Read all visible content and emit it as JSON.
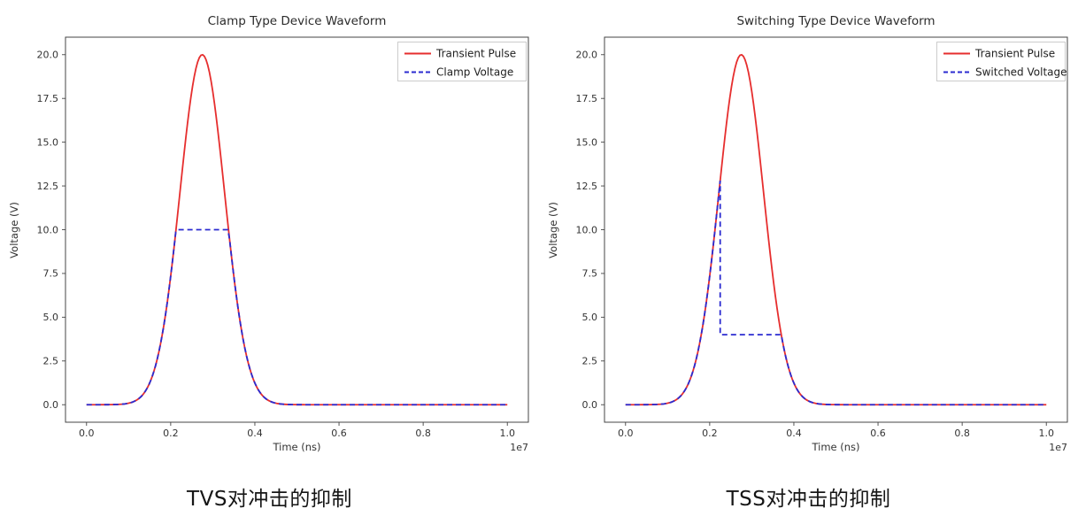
{
  "page": {
    "background": "#ffffff"
  },
  "colors": {
    "pulse_red": "#e62e2e",
    "device_blue": "#2b2bd0",
    "axis_gray": "#444444",
    "caption_text": "#161616"
  },
  "captions": [
    "TVS对冲击的抑制",
    "TSS对冲击的抑制"
  ],
  "chart_data": [
    {
      "type": "line",
      "title": "Clamp Type Device Waveform",
      "xlabel": "Time (ns)",
      "ylabel": "Voltage (V)",
      "x_offset_label": "1e7",
      "xlim": [
        -0.05,
        1.05
      ],
      "ylim": [
        -1,
        21
      ],
      "x_ticks": {
        "values": [
          0,
          0.2,
          0.4,
          0.6,
          0.8,
          1.0
        ],
        "labels": [
          "0.0",
          "0.2",
          "0.4",
          "0.6",
          "0.8",
          "1.0"
        ]
      },
      "y_ticks": {
        "values": [
          0,
          2.5,
          5,
          7.5,
          10,
          12.5,
          15,
          17.5,
          20
        ],
        "labels": [
          "0.0",
          "2.5",
          "5.0",
          "7.5",
          "10.0",
          "12.5",
          "15.0",
          "17.5",
          "20.0"
        ]
      },
      "grid": false,
      "legend": {
        "position": "upper-right",
        "entries": [
          {
            "label": "Transient Pulse",
            "color": "#e62e2e",
            "linestyle": "solid"
          },
          {
            "label": "Clamp Voltage",
            "color": "#2b2bd0",
            "linestyle": "dashed"
          }
        ]
      },
      "pulse": {
        "shape": "gaussian",
        "amplitude_v": 20,
        "center_x": 0.275,
        "sigma_x": 0.053,
        "x_units": "1e7 ns"
      },
      "device": {
        "type": "clamp",
        "clamp_voltage_v": 10
      },
      "samples": {
        "x_1e7_ns": [
          0,
          0.05,
          0.1,
          0.15,
          0.175,
          0.2,
          0.225,
          0.25,
          0.275,
          0.3,
          0.325,
          0.35,
          0.375,
          0.4,
          0.425,
          0.45,
          0.5,
          0.6,
          0.7,
          0.8,
          0.9,
          1.0
        ],
        "transient_pulse_v": [
          0,
          0,
          0.09,
          1.24,
          3.37,
          7.35,
          12.8,
          17.9,
          20,
          17.9,
          12.8,
          7.35,
          3.37,
          1.24,
          0.36,
          0.09,
          0,
          0,
          0,
          0,
          0,
          0
        ],
        "clamp_voltage_v": [
          0,
          0,
          0.09,
          1.24,
          3.37,
          7.35,
          10,
          10,
          10,
          10,
          10,
          7.35,
          3.37,
          1.24,
          0.36,
          0.09,
          0,
          0,
          0,
          0,
          0,
          0
        ]
      }
    },
    {
      "type": "line",
      "title": "Switching Type Device Waveform",
      "xlabel": "Time (ns)",
      "ylabel": "Voltage (V)",
      "x_offset_label": "1e7",
      "xlim": [
        -0.05,
        1.05
      ],
      "ylim": [
        -1,
        21
      ],
      "x_ticks": {
        "values": [
          0,
          0.2,
          0.4,
          0.6,
          0.8,
          1.0
        ],
        "labels": [
          "0.0",
          "0.2",
          "0.4",
          "0.6",
          "0.8",
          "1.0"
        ]
      },
      "y_ticks": {
        "values": [
          0,
          2.5,
          5,
          7.5,
          10,
          12.5,
          15,
          17.5,
          20
        ],
        "labels": [
          "0.0",
          "2.5",
          "5.0",
          "7.5",
          "10.0",
          "12.5",
          "15.0",
          "17.5",
          "20.0"
        ]
      },
      "grid": false,
      "legend": {
        "position": "upper-right",
        "entries": [
          {
            "label": "Transient Pulse",
            "color": "#e62e2e",
            "linestyle": "solid"
          },
          {
            "label": "Switched Voltage",
            "color": "#2b2bd0",
            "linestyle": "dashed"
          }
        ]
      },
      "pulse": {
        "shape": "gaussian",
        "amplitude_v": 20,
        "center_x": 0.275,
        "sigma_x": 0.053,
        "x_units": "1e7 ns"
      },
      "device": {
        "type": "switch",
        "trigger_voltage_v": 12.8,
        "holding_voltage_v": 4
      },
      "samples": {
        "x_1e7_ns": [
          0,
          0.05,
          0.1,
          0.15,
          0.175,
          0.2,
          0.225,
          0.25,
          0.275,
          0.3,
          0.325,
          0.35,
          0.375,
          0.4,
          0.425,
          0.45,
          0.5,
          0.6,
          0.7,
          0.8,
          0.9,
          1.0
        ],
        "transient_pulse_v": [
          0,
          0,
          0.09,
          1.24,
          3.37,
          7.35,
          12.8,
          17.9,
          20,
          17.9,
          12.8,
          7.35,
          3.37,
          1.24,
          0.36,
          0.09,
          0,
          0,
          0,
          0,
          0,
          0
        ],
        "switched_voltage_v": [
          0,
          0,
          0.09,
          1.24,
          3.37,
          7.35,
          12.8,
          4,
          4,
          4,
          4,
          4,
          3.37,
          1.24,
          0.36,
          0.09,
          0,
          0,
          0,
          0,
          0,
          0
        ]
      }
    }
  ]
}
